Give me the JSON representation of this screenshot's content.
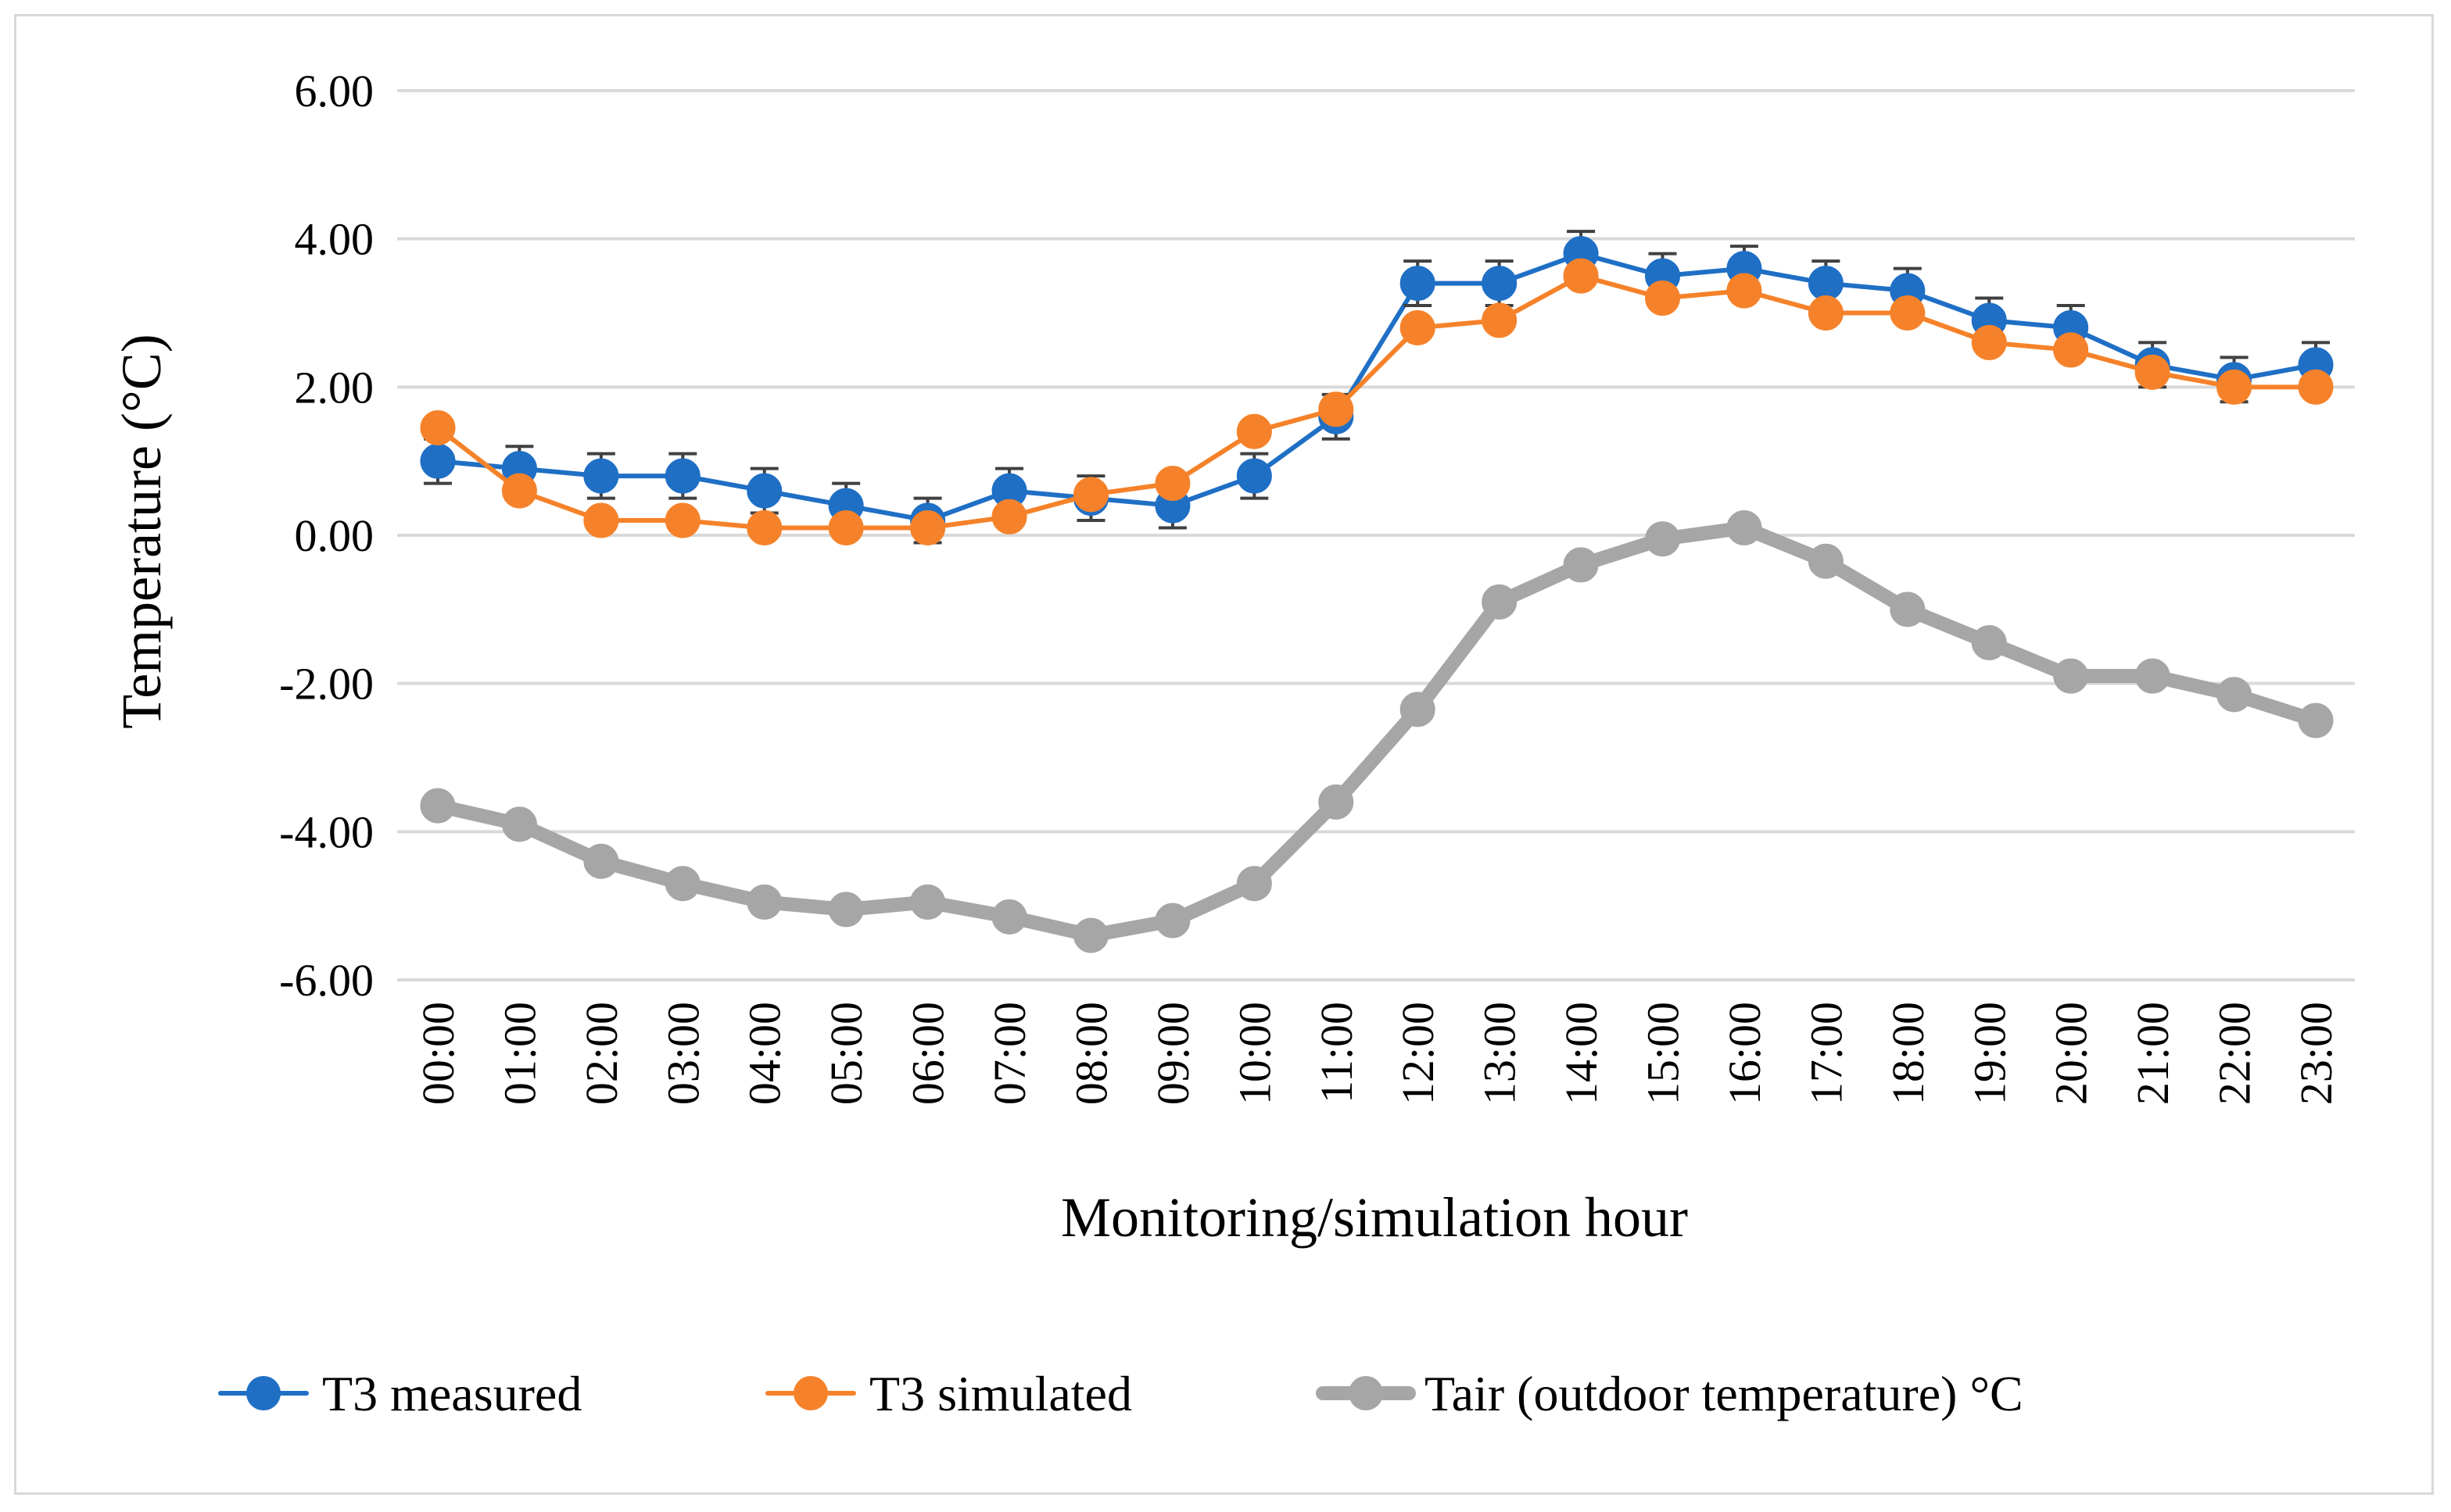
{
  "chart_data": {
    "type": "line",
    "title": "",
    "xlabel": "Monitoring/simulation hour",
    "ylabel": "Temperature (°C)",
    "ylim": [
      -6,
      6
    ],
    "yticks": [
      "6.00",
      "4.00",
      "2.00",
      "0.00",
      "-2.00",
      "-4.00",
      "-6.00"
    ],
    "ytick_values": [
      6,
      4,
      2,
      0,
      -2,
      -4,
      -6
    ],
    "grid": true,
    "legend_position": "bottom",
    "categories": [
      "00:00",
      "01:00",
      "02:00",
      "03:00",
      "04:00",
      "05:00",
      "06:00",
      "07:00",
      "08:00",
      "09:00",
      "10:00",
      "11:00",
      "12:00",
      "13:00",
      "14:00",
      "15:00",
      "16:00",
      "17:00",
      "18:00",
      "19:00",
      "20:00",
      "21:00",
      "22:00",
      "23:00"
    ],
    "series": [
      {
        "name": "T3 measured",
        "color": "#1f6fc5",
        "values": [
          1.0,
          0.9,
          0.8,
          0.8,
          0.6,
          0.4,
          0.2,
          0.6,
          0.5,
          0.4,
          0.8,
          1.6,
          3.4,
          3.4,
          3.8,
          3.5,
          3.6,
          3.4,
          3.3,
          2.9,
          2.8,
          2.3,
          2.1,
          2.3
        ],
        "error": 0.3
      },
      {
        "name": "T3 simulated",
        "color": "#f5822a",
        "values": [
          1.45,
          0.6,
          0.2,
          0.2,
          0.1,
          0.1,
          0.1,
          0.25,
          0.55,
          0.7,
          1.4,
          1.7,
          2.8,
          2.9,
          3.5,
          3.2,
          3.3,
          3.0,
          3.0,
          2.6,
          2.5,
          2.2,
          2.0,
          2.0
        ]
      },
      {
        "name": "Tair (outdoor temperature) °C",
        "color": "#a6a6a6",
        "values": [
          -3.65,
          -3.9,
          -4.4,
          -4.7,
          -4.95,
          -5.05,
          -4.95,
          -5.15,
          -5.4,
          -5.2,
          -4.7,
          -3.6,
          -2.35,
          -0.9,
          -0.4,
          -0.05,
          0.1,
          -0.35,
          -1.0,
          -1.45,
          -1.9,
          -1.9,
          -2.15,
          -2.5
        ]
      }
    ]
  }
}
